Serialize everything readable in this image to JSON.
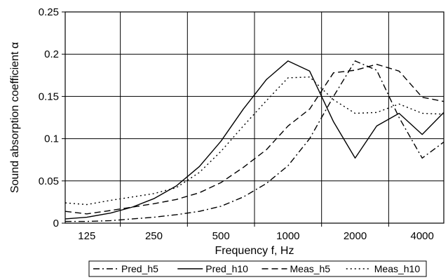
{
  "chart_data": {
    "type": "line",
    "title": "",
    "xlabel": "Frequency f, Hz",
    "ylabel": "Sound absorption coefficient α",
    "x_scale": "log",
    "x_ticks": [
      125,
      250,
      500,
      1000,
      2000,
      4000
    ],
    "x_tick_labels": [
      "125",
      "250",
      "500",
      "1000",
      "2000",
      "4000"
    ],
    "xlim": [
      100,
      5000
    ],
    "ylim": [
      0,
      0.25
    ],
    "y_ticks": [
      0,
      0.05,
      0.1,
      0.15,
      0.2,
      0.25
    ],
    "y_tick_labels": [
      "0",
      "0.05",
      "0.1",
      "0.15",
      "0.2",
      "0.25"
    ],
    "grid": true,
    "legend_position": "bottom",
    "series": [
      {
        "name": "Pred_h5",
        "dash": "dash-dot",
        "x": [
          100,
          125,
          160,
          200,
          250,
          315,
          400,
          500,
          630,
          800,
          1000,
          1250,
          1600,
          2000,
          2500,
          3150,
          4000,
          5000
        ],
        "y": [
          0.002,
          0.002,
          0.003,
          0.005,
          0.007,
          0.01,
          0.014,
          0.02,
          0.031,
          0.047,
          0.068,
          0.1,
          0.15,
          0.192,
          0.181,
          0.125,
          0.077,
          0.096
        ]
      },
      {
        "name": "Pred_h10",
        "dash": "solid",
        "x": [
          100,
          125,
          160,
          200,
          250,
          315,
          400,
          500,
          630,
          800,
          1000,
          1250,
          1600,
          2000,
          2500,
          3150,
          4000,
          5000
        ],
        "y": [
          0.005,
          0.007,
          0.012,
          0.019,
          0.029,
          0.044,
          0.067,
          0.097,
          0.135,
          0.17,
          0.192,
          0.18,
          0.12,
          0.077,
          0.115,
          0.13,
          0.105,
          0.131
        ]
      },
      {
        "name": "Meas_h5",
        "dash": "dash",
        "x": [
          100,
          125,
          160,
          200,
          250,
          315,
          400,
          500,
          630,
          800,
          1000,
          1250,
          1600,
          2000,
          2500,
          3150,
          4000,
          5000
        ],
        "y": [
          0.014,
          0.011,
          0.015,
          0.019,
          0.023,
          0.028,
          0.036,
          0.048,
          0.066,
          0.087,
          0.115,
          0.135,
          0.178,
          0.181,
          0.188,
          0.18,
          0.149,
          0.144
        ]
      },
      {
        "name": "Meas_h10",
        "dash": "dot",
        "x": [
          100,
          125,
          160,
          200,
          250,
          315,
          400,
          500,
          630,
          800,
          1000,
          1250,
          1600,
          2000,
          2500,
          3150,
          4000,
          5000
        ],
        "y": [
          0.024,
          0.022,
          0.027,
          0.031,
          0.035,
          0.042,
          0.06,
          0.085,
          0.115,
          0.145,
          0.172,
          0.173,
          0.146,
          0.13,
          0.131,
          0.141,
          0.13,
          0.129
        ]
      }
    ]
  }
}
